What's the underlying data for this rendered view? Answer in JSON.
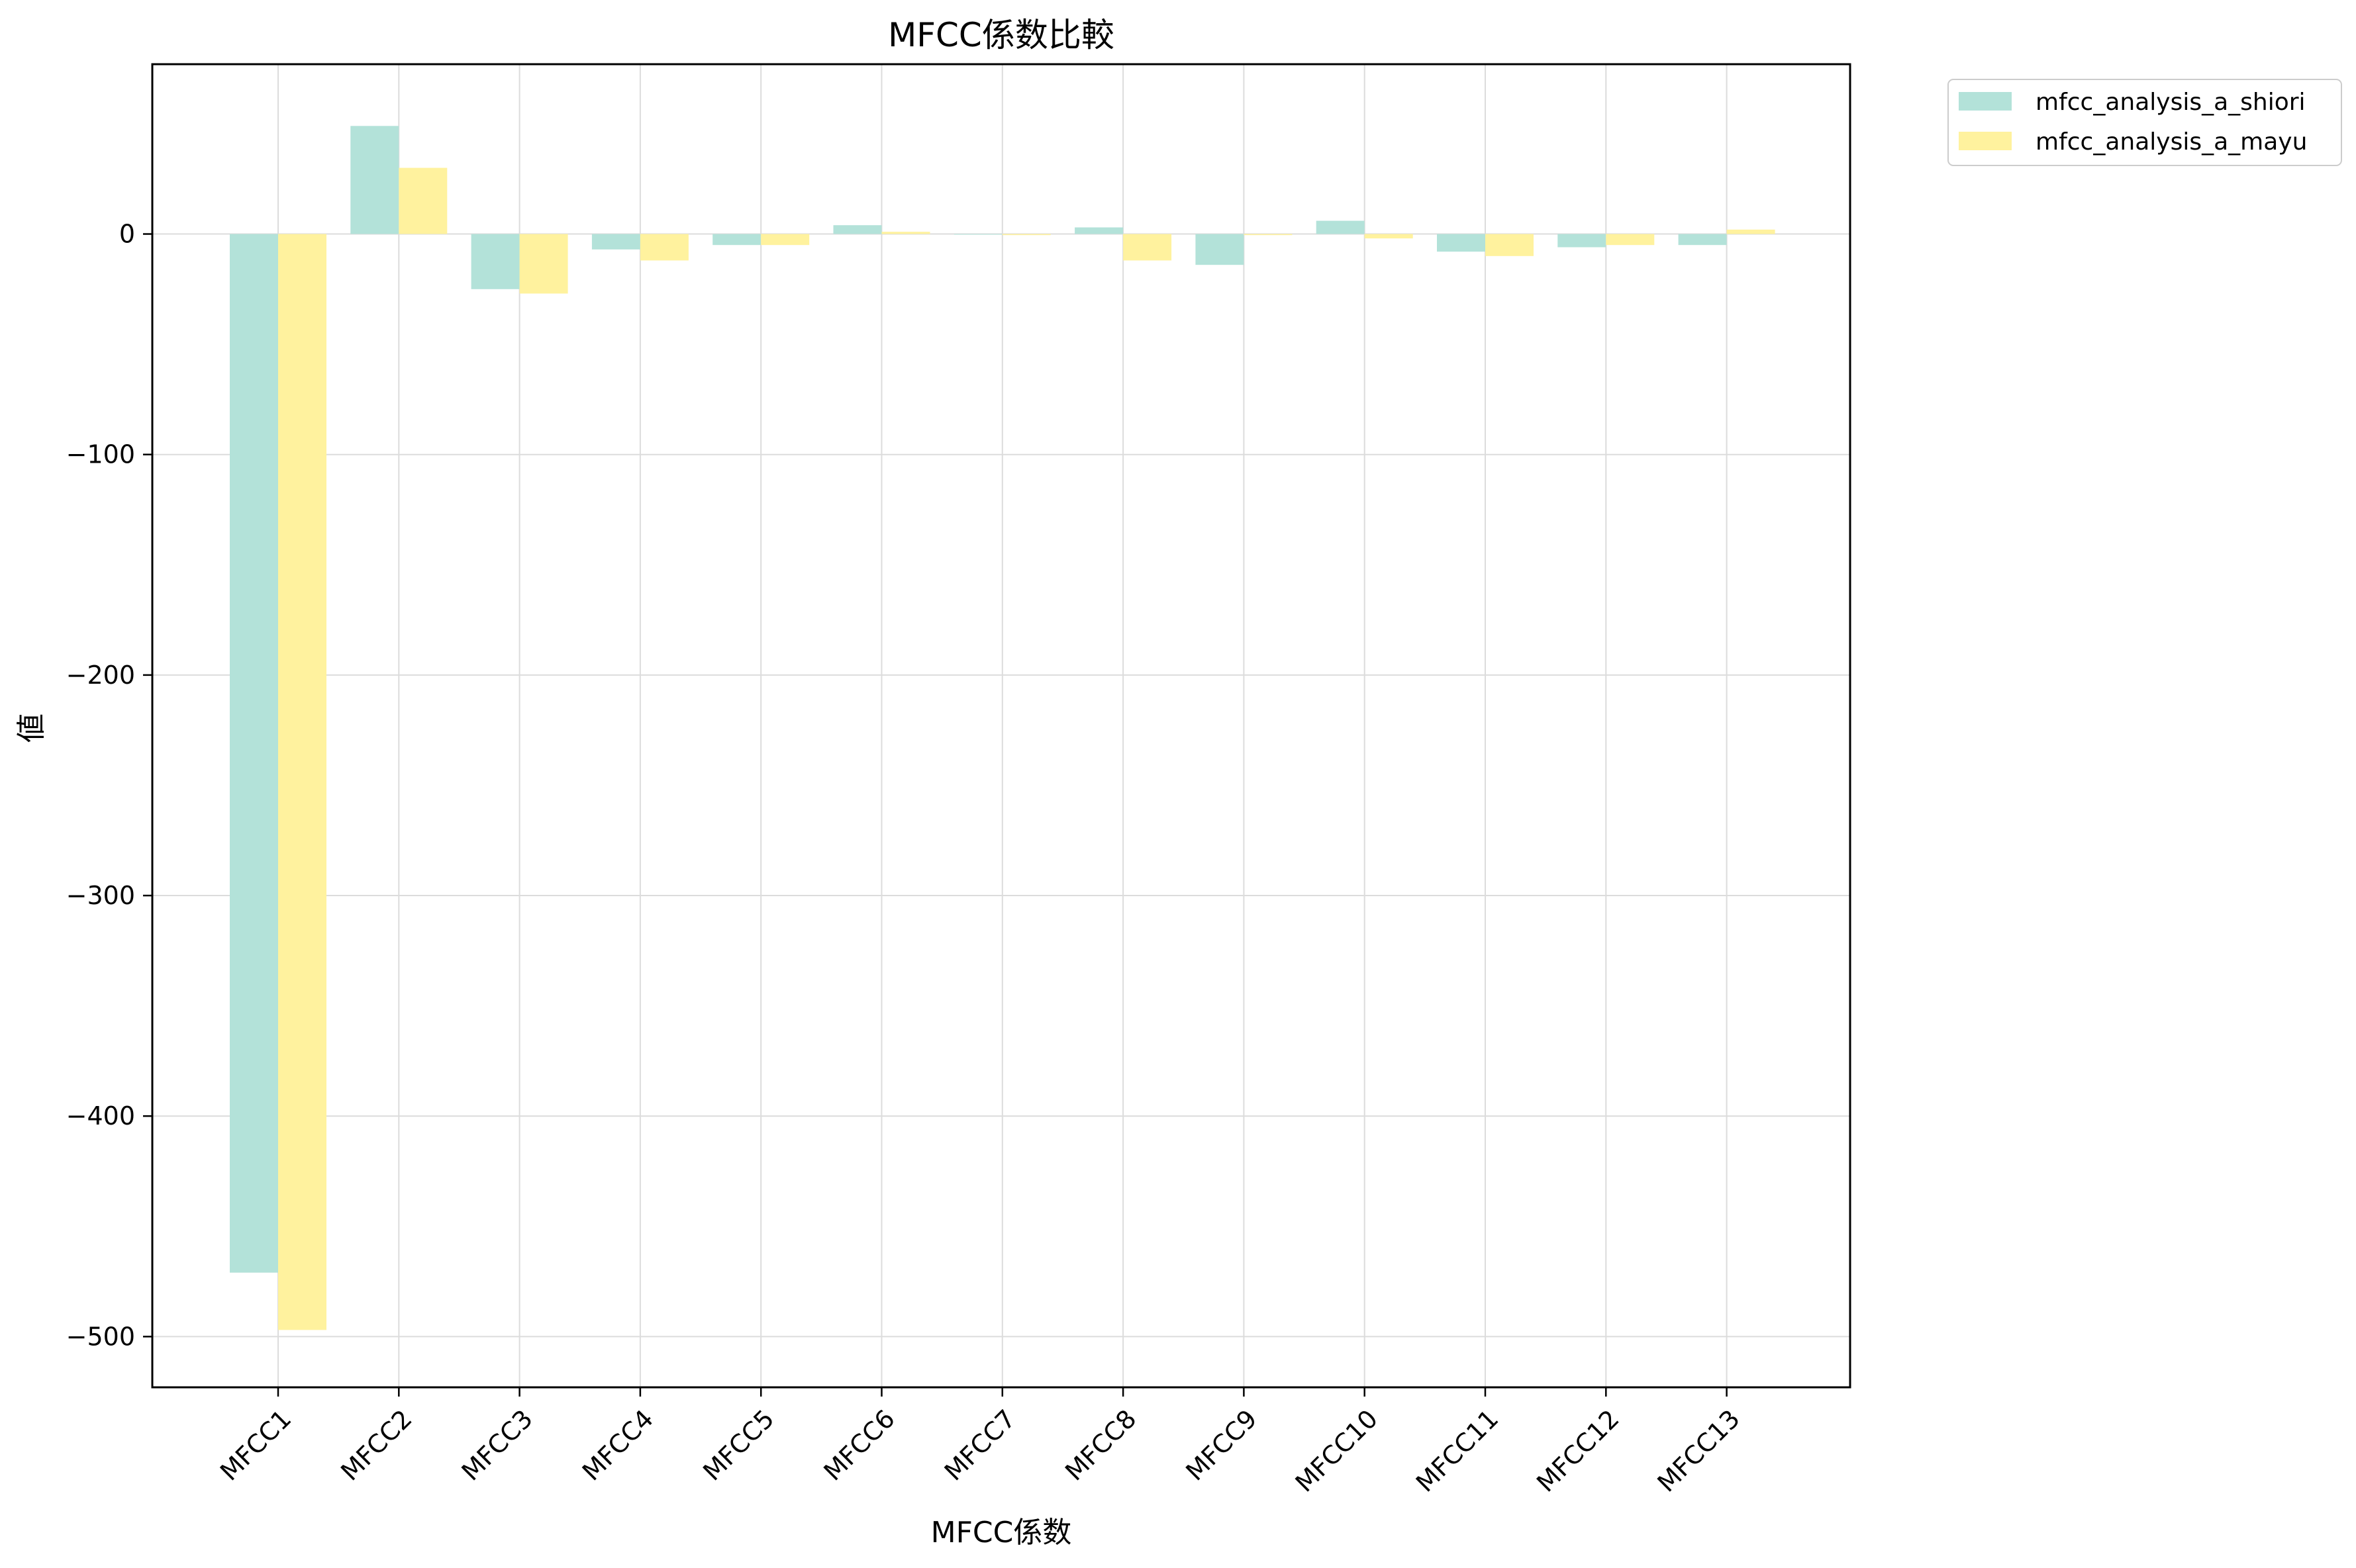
{
  "chart_data": {
    "type": "bar",
    "title": "MFCC係数比較",
    "xlabel": "MFCC係数",
    "ylabel": "値",
    "categories": [
      "MFCC1",
      "MFCC2",
      "MFCC3",
      "MFCC4",
      "MFCC5",
      "MFCC6",
      "MFCC7",
      "MFCC8",
      "MFCC9",
      "MFCC10",
      "MFCC11",
      "MFCC12",
      "MFCC13"
    ],
    "series": [
      {
        "name": "mfcc_analysis_a_shiori",
        "color": "#b3e2d9",
        "values": [
          -471,
          49,
          -25,
          -7,
          -5,
          4,
          0,
          3,
          -14,
          6,
          -8,
          -6,
          -5
        ]
      },
      {
        "name": "mfcc_analysis_a_mayu",
        "color": "#fff29e",
        "values": [
          -497,
          30,
          -27,
          -12,
          -5,
          1,
          -0.5,
          -12,
          -0.5,
          -2,
          -10,
          -5,
          2
        ]
      }
    ],
    "ylim": [
      -523,
      77
    ],
    "yticks": [
      0,
      -100,
      -200,
      -300,
      -400,
      -500
    ],
    "ytick_labels": [
      "0",
      "−100",
      "−200",
      "−300",
      "−400",
      "−500"
    ],
    "grid": true,
    "legend_position": "outside-top-right"
  }
}
